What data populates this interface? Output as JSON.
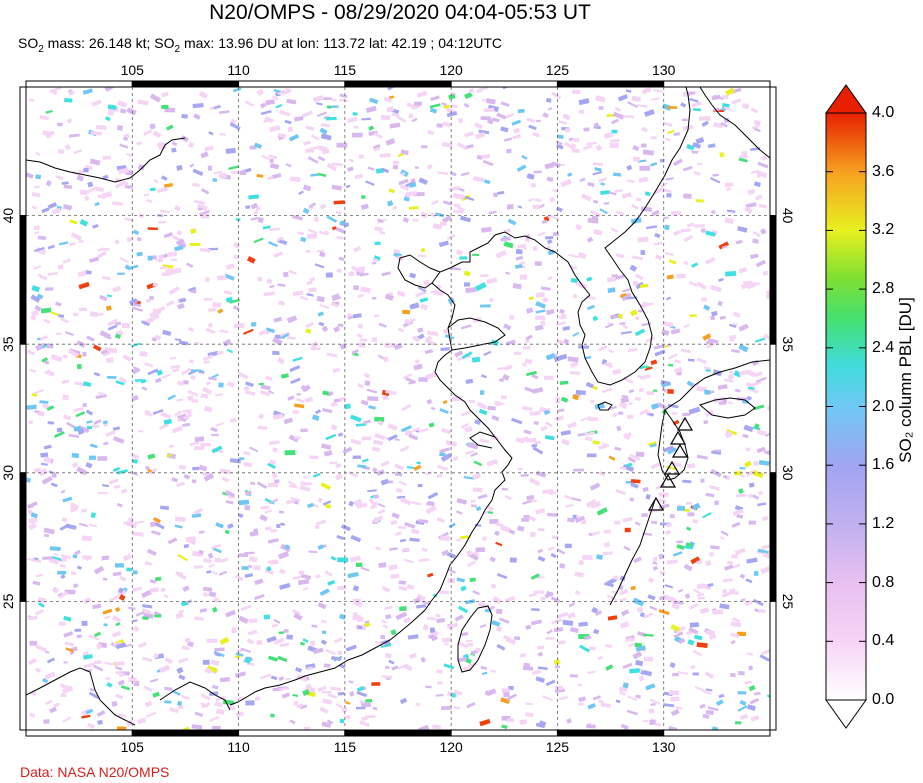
{
  "title": "N20/OMPS - 08/29/2020 04:04-05:53 UT",
  "subtitle": {
    "p1": "SO",
    "sub1": "2",
    "p2": " mass: 26.148 kt; SO",
    "sub2": "2",
    "p3": " max: 13.96 DU at lon: 113.72 lat: 42.19 ; 04:12UTC"
  },
  "credit": "Data: NASA N20/OMPS",
  "colorbar": {
    "label": "SO₂ column PBL [DU]",
    "ticks": [
      "4.0",
      "3.6",
      "3.2",
      "2.8",
      "2.4",
      "2.0",
      "1.6",
      "1.2",
      "0.8",
      "0.4",
      "0.0"
    ],
    "min": 0.0,
    "max": 4.0,
    "colors": [
      "#ffffff",
      "#f6d4f6",
      "#d9b8f0",
      "#a6a6f2",
      "#6fc8f4",
      "#40e0e0",
      "#44e078",
      "#7ae030",
      "#e8f020",
      "#f6a020",
      "#f04010",
      "#e02000"
    ]
  },
  "map": {
    "lon_range": [
      100,
      135
    ],
    "lat_range": [
      20,
      45
    ],
    "lon_ticks": [
      "105",
      "110",
      "115",
      "120",
      "125",
      "130"
    ],
    "lat_ticks": [
      "40",
      "35",
      "30",
      "25"
    ],
    "gridlines": true,
    "volcano_markers": "triangle-icon"
  }
}
